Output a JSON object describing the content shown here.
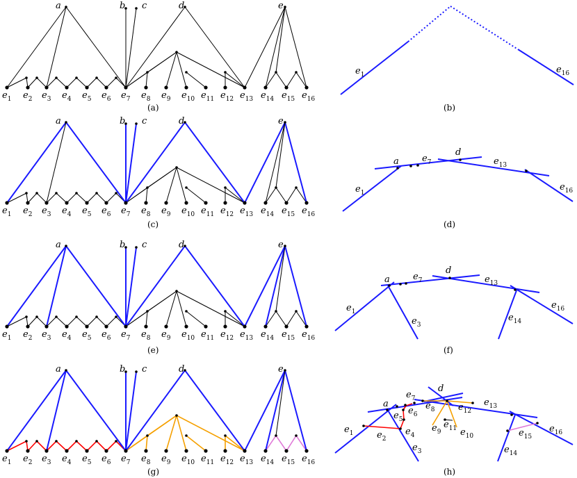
{
  "captions": [
    "(a)",
    "(b)",
    "(c)",
    "(d)",
    "(e)",
    "(f)",
    "(g)",
    "(h)"
  ],
  "top_labels": {
    "a": "a",
    "b": "b",
    "c": "c",
    "d": "d",
    "e": "e"
  },
  "leaf_labels": [
    {
      "base": "e",
      "sub": "1"
    },
    {
      "base": "e",
      "sub": "2"
    },
    {
      "base": "e",
      "sub": "3"
    },
    {
      "base": "e",
      "sub": "4"
    },
    {
      "base": "e",
      "sub": "5"
    },
    {
      "base": "e",
      "sub": "6"
    },
    {
      "base": "e",
      "sub": "7"
    },
    {
      "base": "e",
      "sub": "8"
    },
    {
      "base": "e",
      "sub": "9"
    },
    {
      "base": "e",
      "sub": "10"
    },
    {
      "base": "e",
      "sub": "11"
    },
    {
      "base": "e",
      "sub": "12"
    },
    {
      "base": "e",
      "sub": "13"
    },
    {
      "base": "e",
      "sub": "14"
    },
    {
      "base": "e",
      "sub": "15"
    },
    {
      "base": "e",
      "sub": "16"
    }
  ],
  "panel_b": {
    "left": {
      "base": "e",
      "sub": "1"
    },
    "right": {
      "base": "e",
      "sub": "16"
    }
  },
  "panel_d": {
    "a": "a",
    "d": "d",
    "e1": {
      "base": "e",
      "sub": "1"
    },
    "e7": {
      "base": "e",
      "sub": "7"
    },
    "e13": {
      "base": "e",
      "sub": "13"
    },
    "e16": {
      "base": "e",
      "sub": "16"
    }
  },
  "panel_f": {
    "a": "a",
    "d": "d",
    "e1": {
      "base": "e",
      "sub": "1"
    },
    "e3": {
      "base": "e",
      "sub": "3"
    },
    "e7": {
      "base": "e",
      "sub": "7"
    },
    "e13": {
      "base": "e",
      "sub": "13"
    },
    "e14": {
      "base": "e",
      "sub": "14"
    },
    "e16": {
      "base": "e",
      "sub": "16"
    }
  },
  "panel_h": {
    "a": "a",
    "d": "d",
    "e1": {
      "base": "e",
      "sub": "1"
    },
    "e2": {
      "base": "e",
      "sub": "2"
    },
    "e3": {
      "base": "e",
      "sub": "3"
    },
    "e4": {
      "base": "e",
      "sub": "4"
    },
    "e5": {
      "base": "e",
      "sub": "5"
    },
    "e6": {
      "base": "e",
      "sub": "6"
    },
    "e7": {
      "base": "e",
      "sub": "7"
    },
    "e8": {
      "base": "e",
      "sub": "8"
    },
    "e9": {
      "base": "e",
      "sub": "9"
    },
    "e10": {
      "base": "e",
      "sub": "10"
    },
    "e11": {
      "base": "e",
      "sub": "11"
    },
    "e12": {
      "base": "e",
      "sub": "12"
    },
    "e13": {
      "base": "e",
      "sub": "13"
    },
    "e14": {
      "base": "e",
      "sub": "14"
    },
    "e15": {
      "base": "e",
      "sub": "15"
    },
    "e16": {
      "base": "e",
      "sub": "16"
    }
  }
}
